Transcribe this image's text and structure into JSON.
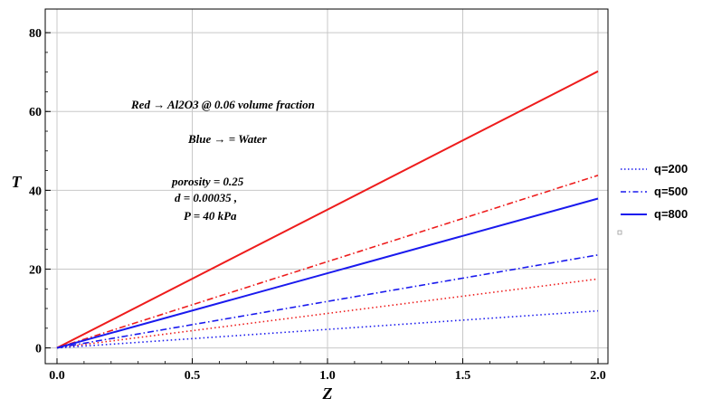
{
  "chart_data": {
    "type": "line",
    "xlabel": "Z",
    "ylabel": "T",
    "xlim": [
      0,
      2.0
    ],
    "ylim": [
      -4,
      86
    ],
    "x_ticks": [
      "0.0",
      "0.5",
      "1.0",
      "1.5",
      "2.0"
    ],
    "y_ticks": [
      "0",
      "20",
      "40",
      "60",
      "80"
    ],
    "grid": true,
    "legend_position": "right",
    "legend": [
      {
        "label": "q=200",
        "style": "dotted"
      },
      {
        "label": "q=500",
        "style": "dash-dot"
      },
      {
        "label": "q=800",
        "style": "solid"
      }
    ],
    "annotations": [
      "Red → Al2O3 @ 0.06 volume fraction",
      "Blue → = Water",
      "porosity = 0.25",
      "d = 0.00035 ,",
      "P = 40 kPa"
    ],
    "series": [
      {
        "color": "#ee1c1c",
        "style": "solid",
        "x": [
          0,
          2.0
        ],
        "y": [
          0,
          70.2
        ]
      },
      {
        "color": "#ee1c1c",
        "style": "dash-dot",
        "x": [
          0,
          2.0
        ],
        "y": [
          0,
          43.8
        ]
      },
      {
        "color": "#ee1c1c",
        "style": "dotted",
        "x": [
          0,
          2.0
        ],
        "y": [
          0,
          17.5
        ]
      },
      {
        "color": "#1a1aee",
        "style": "solid",
        "x": [
          0,
          2.0
        ],
        "y": [
          0,
          37.9
        ]
      },
      {
        "color": "#1a1aee",
        "style": "dash-dot",
        "x": [
          0,
          2.0
        ],
        "y": [
          0,
          23.6
        ]
      },
      {
        "color": "#1a1aee",
        "style": "dotted",
        "x": [
          0,
          2.0
        ],
        "y": [
          0,
          9.4
        ]
      }
    ]
  },
  "colors": {
    "red": "#ee1c1c",
    "blue": "#1a1aee",
    "grid": "#c8c8c8"
  }
}
